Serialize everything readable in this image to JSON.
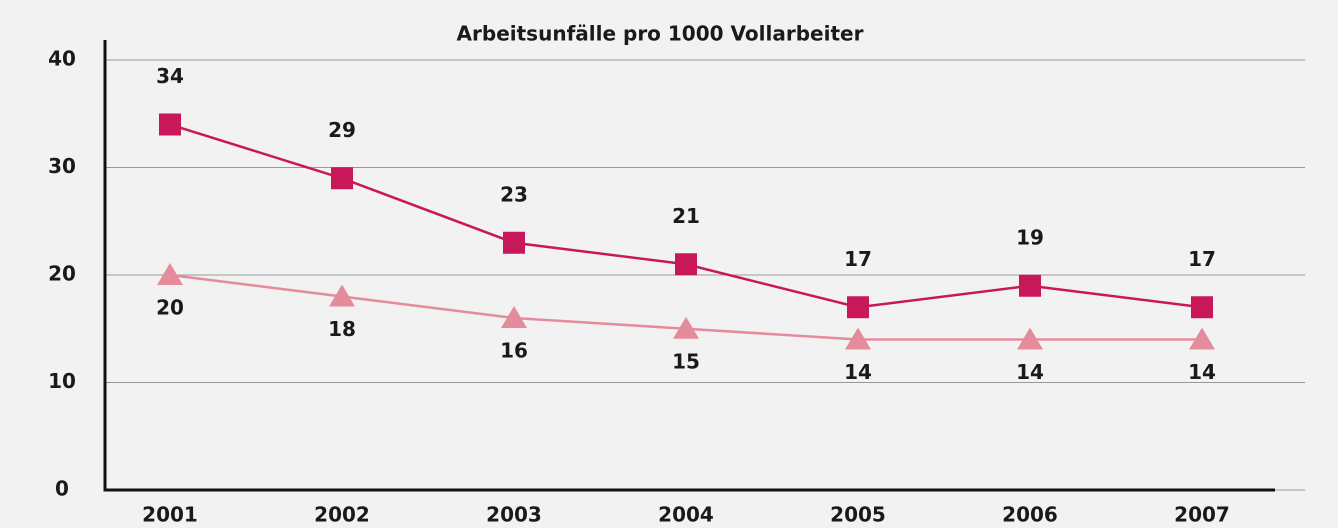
{
  "chart_data": {
    "type": "line",
    "title": "Arbeitsunfälle pro 1000 Vollarbeiter",
    "categories": [
      "2001",
      "2002",
      "2003",
      "2004",
      "2005",
      "2006",
      "2007"
    ],
    "series": [
      {
        "color": "#c8185a",
        "marker": "square",
        "values": [
          34,
          29,
          23,
          21,
          17,
          19,
          17
        ]
      },
      {
        "color": "#e48c9c",
        "marker": "triangle",
        "values": [
          20,
          18,
          16,
          15,
          14,
          14,
          14
        ]
      }
    ],
    "ylim": [
      0,
      40
    ],
    "yticks": [
      0,
      10,
      20,
      30,
      40
    ],
    "grid": true
  }
}
